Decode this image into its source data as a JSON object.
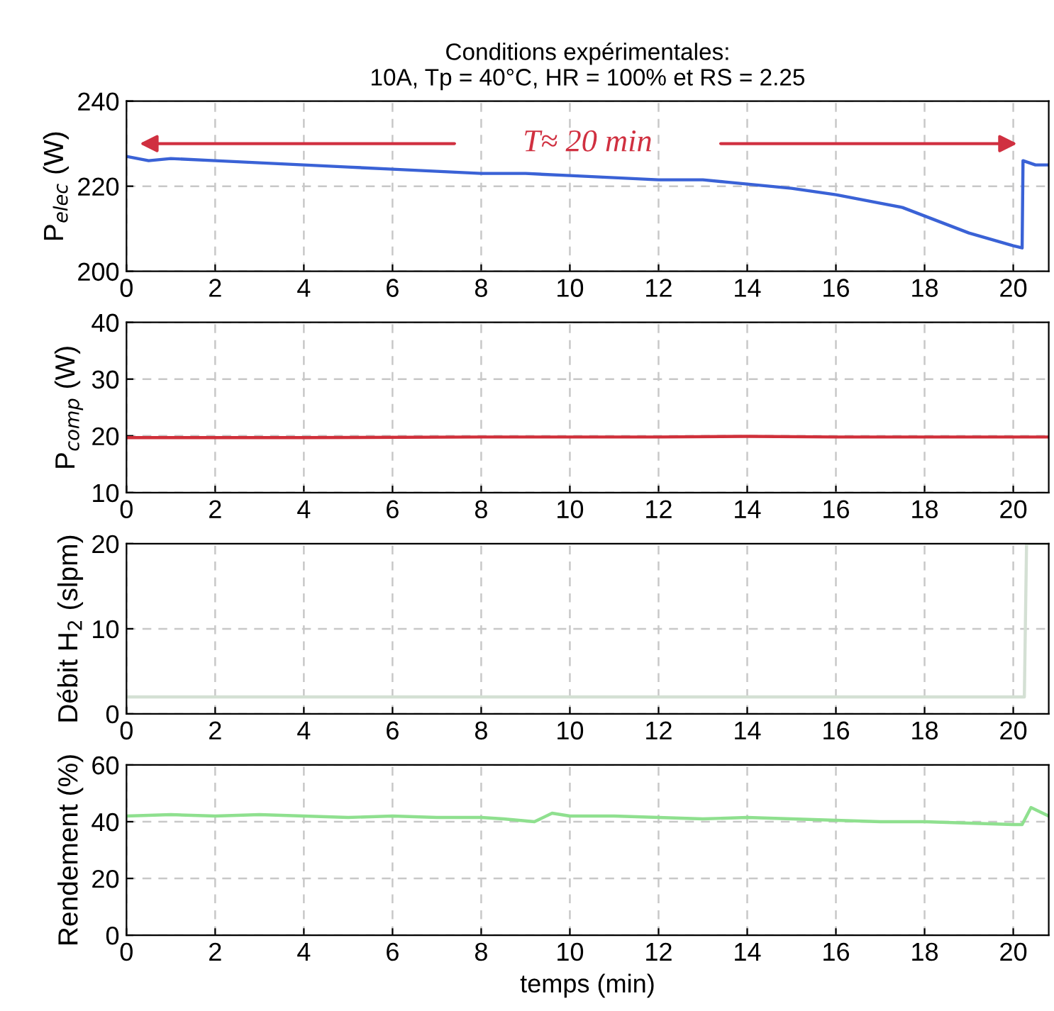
{
  "chart_data": [
    {
      "type": "line",
      "title": "Conditions expérimentales:\n10A, Tp = 40°C, HR = 100% et RS = 2.25",
      "ylabel": "P$_{elec}$ (W)",
      "xlim": [
        0,
        20.8
      ],
      "xticks": [
        0,
        2,
        4,
        6,
        8,
        10,
        12,
        14,
        16,
        18,
        20
      ],
      "ylim": [
        200,
        240
      ],
      "yticks": [
        200,
        220,
        240
      ],
      "grid": true,
      "annotations": [
        "T≈ 20 min"
      ],
      "series": [
        {
          "color": "#3a62d6",
          "x": [
            0,
            0.5,
            1,
            2,
            3,
            4,
            5,
            6,
            7,
            8,
            9,
            10,
            11,
            12,
            13,
            13.5,
            14,
            15,
            16,
            16.5,
            17,
            17.5,
            18,
            18.5,
            19,
            19.5,
            20,
            20.2,
            20.22,
            20.5,
            20.8
          ],
          "values": [
            227,
            226,
            226.5,
            226,
            225.5,
            225,
            224.5,
            224,
            223.5,
            223,
            223,
            222.5,
            222,
            221.5,
            221.5,
            221,
            220.5,
            219.5,
            218,
            217,
            216,
            215,
            213,
            211,
            209,
            207.5,
            206,
            205.5,
            226,
            225,
            225
          ]
        }
      ]
    },
    {
      "type": "line",
      "ylabel": "P$_{comp}$ (W)",
      "xlim": [
        0,
        20.8
      ],
      "xticks": [
        0,
        2,
        4,
        6,
        8,
        10,
        12,
        14,
        16,
        18,
        20
      ],
      "ylim": [
        10,
        40
      ],
      "yticks": [
        10,
        20,
        30,
        40
      ],
      "grid": true,
      "series": [
        {
          "color": "#d0303a",
          "x": [
            0,
            4,
            8,
            12,
            14,
            16,
            20,
            20.8
          ],
          "values": [
            19.7,
            19.7,
            19.8,
            19.8,
            19.9,
            19.8,
            19.8,
            19.8
          ]
        }
      ]
    },
    {
      "type": "line",
      "ylabel": "Débit H$_{2}$ (slpm)",
      "xlim": [
        0,
        20.8
      ],
      "xticks": [
        0,
        2,
        4,
        6,
        8,
        10,
        12,
        14,
        16,
        18,
        20
      ],
      "ylim": [
        0,
        20
      ],
      "yticks": [
        0,
        10,
        20
      ],
      "grid": true,
      "series": [
        {
          "color": "#d4e0d4",
          "x": [
            0,
            5,
            10,
            15,
            20,
            20.25,
            20.3,
            20.8
          ],
          "values": [
            2,
            2,
            2,
            2,
            2,
            2,
            20,
            20
          ]
        }
      ]
    },
    {
      "type": "line",
      "ylabel": "Rendement (%)",
      "xlabel": "temps (min)",
      "xlim": [
        0,
        20.8
      ],
      "xticks": [
        0,
        2,
        4,
        6,
        8,
        10,
        12,
        14,
        16,
        18,
        20
      ],
      "ylim": [
        0,
        60
      ],
      "yticks": [
        0,
        20,
        40,
        60
      ],
      "grid": true,
      "series": [
        {
          "color": "#8fe08f",
          "x": [
            0,
            1,
            2,
            3,
            4,
            5,
            6,
            7,
            8,
            8.5,
            9.2,
            9.6,
            10,
            11,
            12,
            13,
            14,
            15,
            16,
            17,
            18,
            19,
            20,
            20.2,
            20.4,
            20.8
          ],
          "values": [
            42,
            42.5,
            42,
            42.5,
            42,
            41.5,
            42,
            41.5,
            41.5,
            41,
            40,
            43,
            42,
            42,
            41.5,
            41,
            41.5,
            41,
            40.5,
            40,
            40,
            39.5,
            39,
            39,
            45,
            42
          ]
        }
      ]
    }
  ]
}
